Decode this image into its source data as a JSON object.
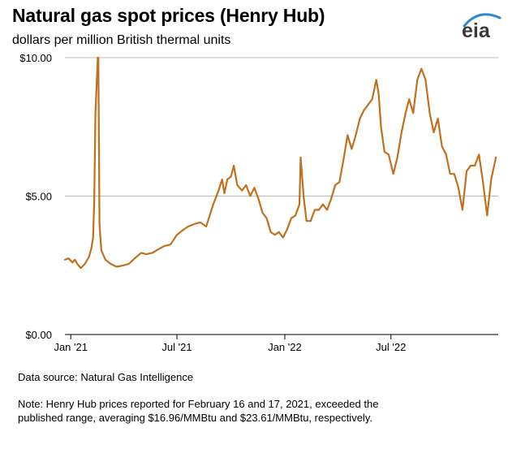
{
  "title": "Natural gas spot prices (Henry Hub)",
  "subtitle": "dollars per million British thermal units",
  "source": "Data source: Natural Gas Intelligence",
  "note_lines": [
    "Note: Henry Hub prices reported for February 16 and 17, 2021, exceeded the",
    "published range, averaging $16.96/MMBtu and $23.61/MMBtu, respectively."
  ],
  "logo_text": "eia",
  "colors": {
    "line": "#c0701e",
    "grid": "#bdbdbd",
    "axis": "#000000",
    "logo_arc": "#2b8ad2"
  },
  "chart_data": {
    "type": "line",
    "title": "Natural gas spot prices (Henry Hub)",
    "ylabel": "dollars per million British thermal units",
    "ylim": [
      0,
      10
    ],
    "xlim": [
      "2020-12-22",
      "2022-12-31"
    ],
    "y_ticks": [
      0,
      5,
      10
    ],
    "y_tick_labels": [
      "$0.00",
      "$5.00",
      "$10.00"
    ],
    "x_ticks": [
      "2021-01-01",
      "2021-07-01",
      "2022-01-01",
      "2022-07-01"
    ],
    "x_tick_labels": [
      "Jan '21",
      "Jul '21",
      "Jan '22",
      "Jul '22"
    ],
    "grid": "horizontal",
    "series": [
      {
        "x": [
          "2020-12-22",
          "2020-12-28",
          "2021-01-04",
          "2021-01-08",
          "2021-01-12",
          "2021-01-18",
          "2021-01-25",
          "2021-02-01",
          "2021-02-05",
          "2021-02-08",
          "2021-02-10",
          "2021-02-12",
          "2021-02-16",
          "2021-02-17",
          "2021-02-19",
          "2021-02-22",
          "2021-03-01",
          "2021-03-10",
          "2021-03-20",
          "2021-04-01",
          "2021-04-10",
          "2021-04-20",
          "2021-05-01",
          "2021-05-10",
          "2021-05-20",
          "2021-06-01",
          "2021-06-10",
          "2021-06-20",
          "2021-07-01",
          "2021-07-10",
          "2021-07-20",
          "2021-08-01",
          "2021-08-10",
          "2021-08-20",
          "2021-09-01",
          "2021-09-10",
          "2021-09-16",
          "2021-09-20",
          "2021-09-25",
          "2021-10-01",
          "2021-10-06",
          "2021-10-12",
          "2021-10-20",
          "2021-10-27",
          "2021-11-03",
          "2021-11-10",
          "2021-11-17",
          "2021-11-24",
          "2021-12-01",
          "2021-12-08",
          "2021-12-15",
          "2021-12-22",
          "2021-12-29",
          "2022-01-05",
          "2022-01-12",
          "2022-01-19",
          "2022-01-26",
          "2022-01-28",
          "2022-02-02",
          "2022-02-07",
          "2022-02-14",
          "2022-02-21",
          "2022-02-28",
          "2022-03-07",
          "2022-03-14",
          "2022-03-21",
          "2022-03-28",
          "2022-04-04",
          "2022-04-11",
          "2022-04-18",
          "2022-04-25",
          "2022-05-02",
          "2022-05-09",
          "2022-05-16",
          "2022-05-23",
          "2022-05-30",
          "2022-06-06",
          "2022-06-10",
          "2022-06-14",
          "2022-06-20",
          "2022-06-27",
          "2022-07-05",
          "2022-07-12",
          "2022-07-19",
          "2022-07-26",
          "2022-08-01",
          "2022-08-08",
          "2022-08-15",
          "2022-08-22",
          "2022-08-29",
          "2022-09-05",
          "2022-09-12",
          "2022-09-19",
          "2022-09-26",
          "2022-10-03",
          "2022-10-10",
          "2022-10-17",
          "2022-10-24",
          "2022-10-31",
          "2022-11-07",
          "2022-11-14",
          "2022-11-21",
          "2022-11-28",
          "2022-12-05",
          "2022-12-12",
          "2022-12-19",
          "2022-12-27"
        ],
        "y": [
          2.7,
          2.75,
          2.6,
          2.7,
          2.55,
          2.4,
          2.55,
          2.8,
          3.1,
          3.5,
          4.8,
          8.0,
          10.0,
          10.0,
          4.0,
          3.05,
          2.7,
          2.55,
          2.45,
          2.5,
          2.55,
          2.75,
          2.95,
          2.9,
          2.95,
          3.1,
          3.2,
          3.25,
          3.6,
          3.75,
          3.9,
          4.0,
          4.05,
          3.9,
          4.7,
          5.2,
          5.6,
          5.1,
          5.6,
          5.7,
          6.1,
          5.4,
          5.2,
          5.4,
          5.0,
          5.3,
          4.9,
          4.4,
          4.2,
          3.7,
          3.6,
          3.7,
          3.5,
          3.8,
          4.2,
          4.3,
          4.7,
          6.4,
          5.0,
          4.1,
          4.1,
          4.5,
          4.5,
          4.7,
          4.5,
          4.9,
          5.4,
          5.5,
          6.3,
          7.2,
          6.7,
          7.2,
          7.8,
          8.1,
          8.3,
          8.5,
          9.2,
          8.7,
          7.5,
          6.6,
          6.5,
          5.8,
          6.4,
          7.3,
          8.0,
          8.5,
          8.0,
          9.2,
          9.6,
          9.2,
          8.0,
          7.3,
          7.8,
          6.8,
          6.5,
          5.8,
          5.8,
          5.3,
          4.5,
          5.9,
          6.1,
          6.1,
          6.5,
          5.5,
          4.3,
          5.6,
          6.4
        ]
      }
    ]
  }
}
